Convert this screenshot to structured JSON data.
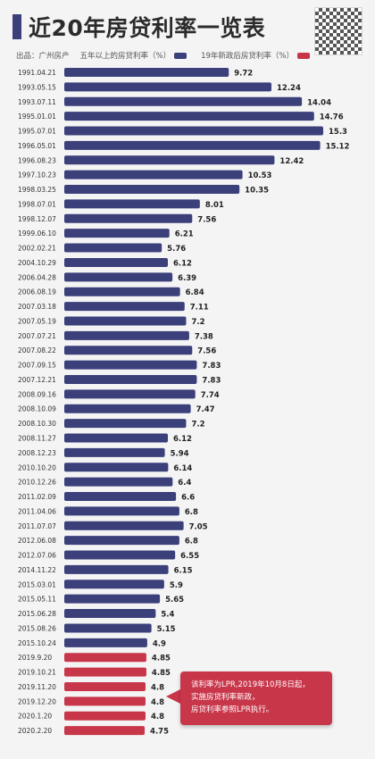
{
  "header": {
    "title": "近20年房贷利率一览表"
  },
  "legend": {
    "source": "出品：广州房产",
    "series1_label": "五年以上的房贷利率（%）",
    "series2_label": "19年新政后房贷利率（%）"
  },
  "colors": {
    "old": "#3b3f7a",
    "new": "#c8364a"
  },
  "callout": {
    "line1": "该利率为LPR,2019年10月8日起，",
    "line2": "实施房贷利率新政，",
    "line3": "房贷利率参照LPR执行。"
  },
  "chart_data": {
    "type": "bar",
    "orientation": "horizontal",
    "title": "近20年房贷利率一览表",
    "categories": [
      "1991.04.21",
      "1993.05.15",
      "1993.07.11",
      "1995.01.01",
      "1995.07.01",
      "1996.05.01",
      "1996.08.23",
      "1997.10.23",
      "1998.03.25",
      "1998.07.01",
      "1998.12.07",
      "1999.06.10",
      "2002.02.21",
      "2004.10.29",
      "2006.04.28",
      "2006.08.19",
      "2007.03.18",
      "2007.05.19",
      "2007.07.21",
      "2007.08.22",
      "2007.09.15",
      "2007.12.21",
      "2008.09.16",
      "2008.10.09",
      "2008.10.30",
      "2008.11.27",
      "2008.12.23",
      "2010.10.20",
      "2010.12.26",
      "2011.02.09",
      "2011.04.06",
      "2011.07.07",
      "2012.06.08",
      "2012.07.06",
      "2014.11.22",
      "2015.03.01",
      "2015.05.11",
      "2015.06.28",
      "2015.08.26",
      "2015.10.24",
      "2019.9.20",
      "2019.10.21",
      "2019.11.20",
      "2019.12.20",
      "2020.1.20",
      "2020.2.20"
    ],
    "values": [
      9.72,
      12.24,
      14.04,
      14.76,
      15.3,
      15.12,
      12.42,
      10.53,
      10.35,
      8.01,
      7.56,
      6.21,
      5.76,
      6.12,
      6.39,
      6.84,
      7.11,
      7.2,
      7.38,
      7.56,
      7.83,
      7.83,
      7.74,
      7.47,
      7.2,
      6.12,
      5.94,
      6.14,
      6.4,
      6.6,
      6.8,
      7.05,
      6.8,
      6.55,
      6.15,
      5.9,
      5.65,
      5.4,
      5.15,
      4.9,
      4.85,
      4.85,
      4.8,
      4.8,
      4.8,
      4.75
    ],
    "value_labels": [
      "9.72",
      "12.24",
      "14.04",
      "14.76",
      "15.3",
      "15.12",
      "12.42",
      "10.53",
      "10.35",
      "8.01",
      "7.56",
      "6.21",
      "5.76",
      "6.12",
      "6.39",
      "6.84",
      "7.11",
      "7.2",
      "7.38",
      "7.56",
      "7.83",
      "7.83",
      "7.74",
      "7.47",
      "7.2",
      "6.12",
      "5.94",
      "6.14",
      "6.4",
      "6.6",
      "6.8",
      "7.05",
      "6.8",
      "6.55",
      "6.15",
      "5.9",
      "5.65",
      "5.4",
      "5.15",
      "4.9",
      "4.85",
      "4.85",
      "4.8",
      "4.8",
      "4.8",
      "4.75"
    ],
    "series_index": [
      0,
      0,
      0,
      0,
      0,
      0,
      0,
      0,
      0,
      0,
      0,
      0,
      0,
      0,
      0,
      0,
      0,
      0,
      0,
      0,
      0,
      0,
      0,
      0,
      0,
      0,
      0,
      0,
      0,
      0,
      0,
      0,
      0,
      0,
      0,
      0,
      0,
      0,
      0,
      0,
      1,
      1,
      1,
      1,
      1,
      1
    ],
    "series": [
      {
        "name": "五年以上的房贷利率（%）"
      },
      {
        "name": "19年新政后房贷利率（%）"
      }
    ],
    "xlim": [
      0,
      15.3
    ],
    "grid": false,
    "legend_position": "top-left"
  }
}
